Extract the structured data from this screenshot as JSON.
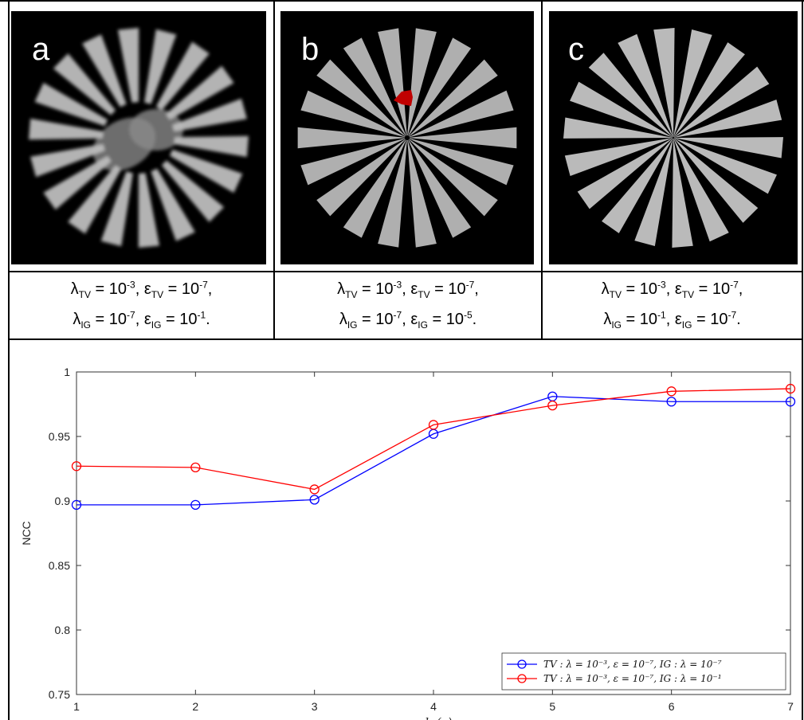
{
  "panels": [
    {
      "letter": "a",
      "caption": {
        "l_tv": "λ",
        "l_tv_sub": "TV",
        "l_tv_eq": " = 10",
        "l_tv_exp": "-3",
        "e_tv": ", ε",
        "e_tv_sub": "TV",
        "e_tv_eq": " = 10",
        "e_tv_exp": "-7",
        "e_tv_end": ",",
        "l_ig": "λ",
        "l_ig_sub": "IG",
        "l_ig_eq": " = 10",
        "l_ig_exp": "-7",
        "e_ig": ", ε",
        "e_ig_sub": "IG",
        "e_ig_eq": " = 10",
        "e_ig_exp": "-1",
        "e_ig_end": "."
      }
    },
    {
      "letter": "b",
      "caption": {
        "l_tv": "λ",
        "l_tv_sub": "TV",
        "l_tv_eq": " = 10",
        "l_tv_exp": "-3",
        "e_tv": ", ε",
        "e_tv_sub": "TV",
        "e_tv_eq": " = 10",
        "e_tv_exp": "-7",
        "e_tv_end": ",",
        "l_ig": "λ",
        "l_ig_sub": "IG",
        "l_ig_eq": " = 10",
        "l_ig_exp": "-7",
        "e_ig": ", ε",
        "e_ig_sub": "IG",
        "e_ig_eq": " = 10",
        "e_ig_exp": "-5",
        "e_ig_end": "."
      }
    },
    {
      "letter": "c",
      "caption": {
        "l_tv": "λ",
        "l_tv_sub": "TV",
        "l_tv_eq": " = 10",
        "l_tv_exp": "-3",
        "e_tv": ", ε",
        "e_tv_sub": "TV",
        "e_tv_eq": " = 10",
        "e_tv_exp": "-7",
        "e_tv_end": ",",
        "l_ig": "λ",
        "l_ig_sub": "IG",
        "l_ig_eq": " = 10",
        "l_ig_exp": "-1",
        "e_ig": ", ε",
        "e_ig_sub": "IG",
        "e_ig_eq": " = 10",
        "e_ig_exp": "-7",
        "e_ig_end": "."
      }
    }
  ],
  "arrow_color": "#c00000",
  "chart_data": {
    "type": "line",
    "ylabel": "NCC",
    "xlabel": "−lg(ε)",
    "x": [
      1,
      2,
      3,
      4,
      5,
      6,
      7
    ],
    "xlim": [
      1,
      7
    ],
    "ylim": [
      0.75,
      1
    ],
    "xticks": [
      "1",
      "2",
      "3",
      "4",
      "5",
      "6",
      "7"
    ],
    "yticks": [
      "0.75",
      "0.8",
      "0.85",
      "0.9",
      "0.95",
      "1"
    ],
    "ytick_values": [
      0.75,
      0.8,
      0.85,
      0.9,
      0.95,
      1.0
    ],
    "grid": false,
    "legend_position": "bottom-right",
    "series": [
      {
        "name": "TV : λ = 10⁻³, ε = 10⁻⁷, IG : λ = 10⁻⁷",
        "color": "#0000ff",
        "values": [
          0.897,
          0.897,
          0.901,
          0.952,
          0.981,
          0.977,
          0.977
        ]
      },
      {
        "name": "TV : λ = 10⁻³, ε = 10⁻⁷, IG : λ = 10⁻¹",
        "color": "#ff0000",
        "values": [
          0.927,
          0.926,
          0.909,
          0.959,
          0.974,
          0.985,
          0.987
        ]
      }
    ]
  }
}
